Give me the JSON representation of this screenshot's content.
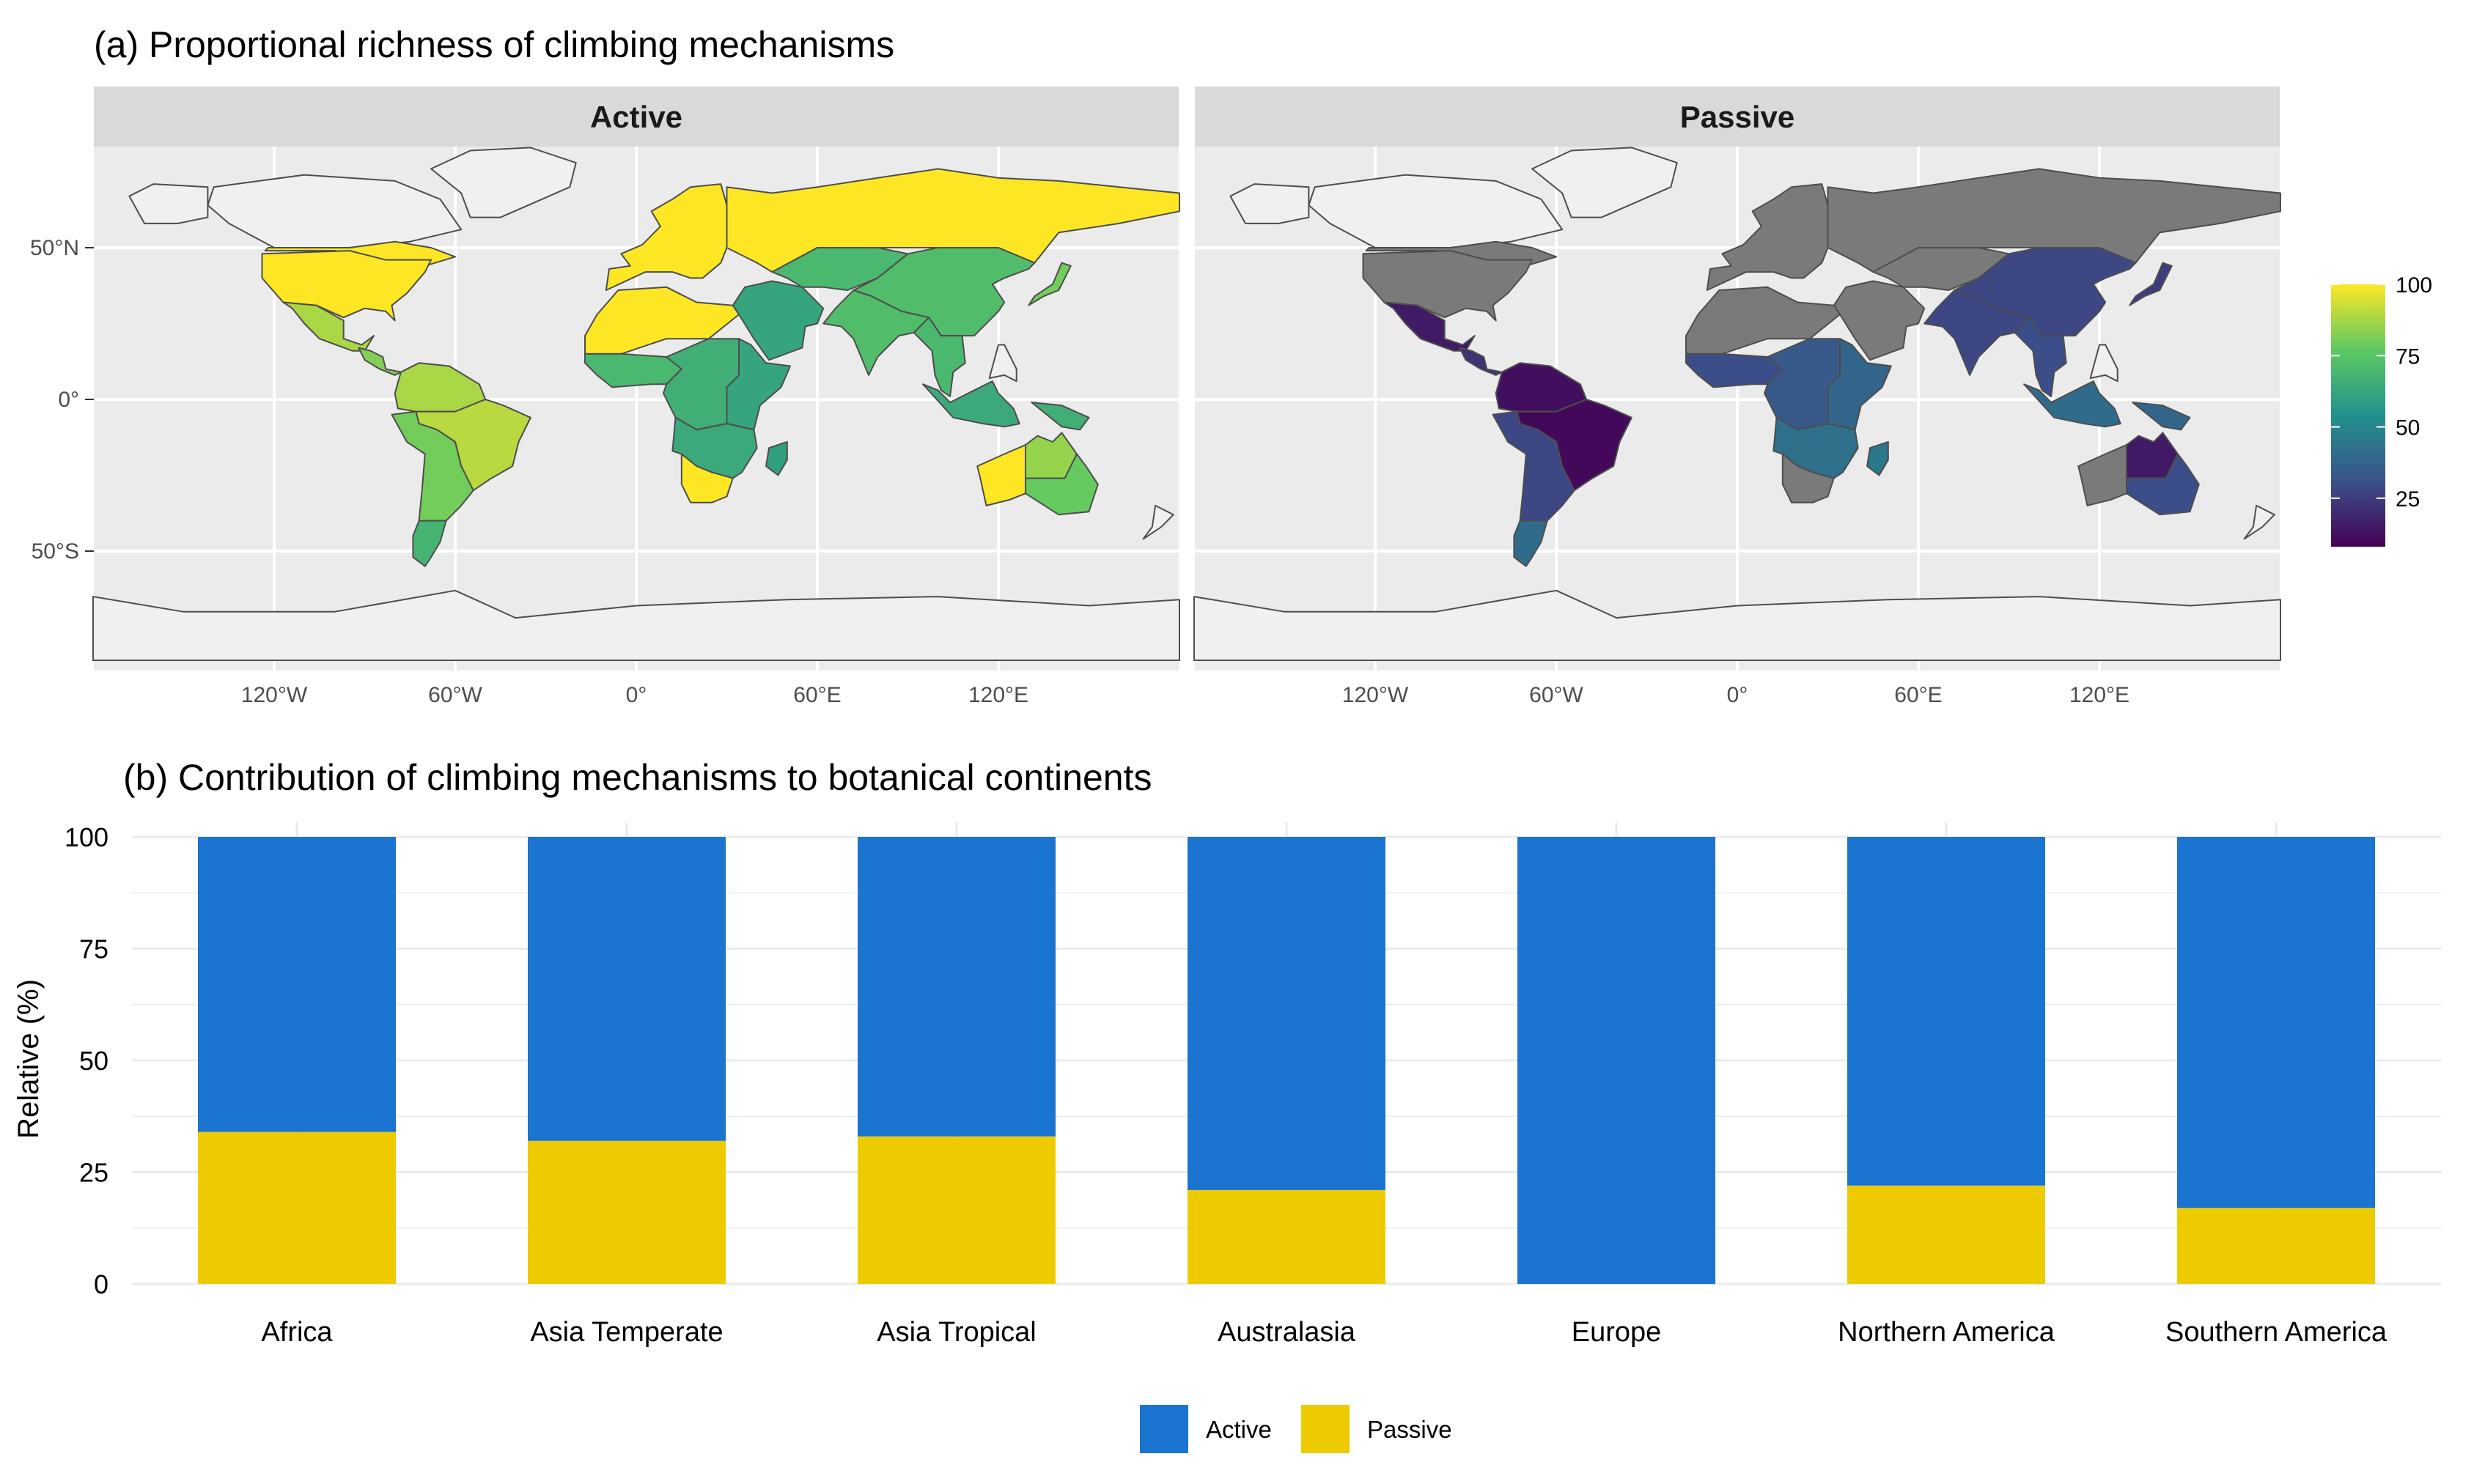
{
  "panel_a": {
    "title": "(a) Proportional richness of climbing mechanisms",
    "facets": [
      "Active",
      "Passive"
    ],
    "lat_ticks": [
      "50°N",
      "0°",
      "50°S"
    ],
    "lon_ticks": [
      "120°W",
      "60°W",
      "0°",
      "60°E",
      "120°E"
    ],
    "colorbar": {
      "ticks": [
        "100",
        "75",
        "50",
        "25"
      ],
      "range": [
        8,
        100
      ],
      "colors": [
        "#440154",
        "#3b528b",
        "#21918c",
        "#5ec962",
        "#fde725"
      ]
    },
    "colors": {
      "panel_bg": "#ebebeb",
      "strip_bg": "#d9d9d9",
      "unsampled": "#f0f0f0",
      "no_data_passive": "#7a7a7a",
      "border": "#4d4d4d"
    },
    "map_regions": [
      {
        "name": "Canada south",
        "active": 100,
        "passive": null
      },
      {
        "name": "USA",
        "active": 100,
        "passive": null
      },
      {
        "name": "Mexico",
        "active": 88,
        "passive": 15
      },
      {
        "name": "Central America",
        "active": 82,
        "passive": 22
      },
      {
        "name": "Northern South America",
        "active": 88,
        "passive": 12
      },
      {
        "name": "Brazil",
        "active": 90,
        "passive": 10
      },
      {
        "name": "Southern South America",
        "active": 80,
        "passive": 28
      },
      {
        "name": "Patagonia",
        "active": 68,
        "passive": 40
      },
      {
        "name": "Europe",
        "active": 100,
        "passive": null
      },
      {
        "name": "Russia",
        "active": 100,
        "passive": null
      },
      {
        "name": "North Africa",
        "active": 100,
        "passive": null
      },
      {
        "name": "West Africa",
        "active": 70,
        "passive": 30
      },
      {
        "name": "Central Africa",
        "active": 66,
        "passive": 34
      },
      {
        "name": "East Africa",
        "active": 62,
        "passive": 38
      },
      {
        "name": "Southern Africa",
        "active": 64,
        "passive": 42
      },
      {
        "name": "South Africa",
        "active": 100,
        "passive": null
      },
      {
        "name": "Madagascar",
        "active": 60,
        "passive": 45
      },
      {
        "name": "Middle East",
        "active": 62,
        "passive": null
      },
      {
        "name": "Central Asia",
        "active": 70,
        "passive": null
      },
      {
        "name": "India",
        "active": 72,
        "passive": 28
      },
      {
        "name": "China",
        "active": 72,
        "passive": 28
      },
      {
        "name": "Japan",
        "active": 80,
        "passive": 25
      },
      {
        "name": "Southeast Asia",
        "active": 70,
        "passive": 30
      },
      {
        "name": "Indonesia",
        "active": 64,
        "passive": 40
      },
      {
        "name": "New Guinea",
        "active": 66,
        "passive": 38
      },
      {
        "name": "Australia west",
        "active": 100,
        "passive": null
      },
      {
        "name": "Australia north",
        "active": 85,
        "passive": 15
      },
      {
        "name": "Australia east",
        "active": 78,
        "passive": 30
      }
    ]
  },
  "panel_b": {
    "title": "(b) Contribution of climbing mechanisms to botanical continents",
    "y_ticks": [
      "0",
      "25",
      "50",
      "75",
      "100"
    ]
  },
  "chart_data": {
    "type": "bar",
    "stacked": true,
    "title": "(b) Contribution of climbing mechanisms to botanical continents",
    "xlabel": "",
    "ylabel": "Relative (%)",
    "ylim": [
      0,
      100
    ],
    "categories": [
      "Africa",
      "Asia Temperate",
      "Asia Tropical",
      "Australasia",
      "Europe",
      "Northern America",
      "Southern America"
    ],
    "series": [
      {
        "name": "Passive",
        "color": "#eecb00",
        "values": [
          34,
          32,
          33,
          21,
          0,
          22,
          17
        ]
      },
      {
        "name": "Active",
        "color": "#1a74d0",
        "values": [
          66,
          68,
          67,
          79,
          100,
          78,
          83
        ]
      }
    ],
    "legend": {
      "position": "bottom",
      "entries": [
        "Active",
        "Passive"
      ]
    },
    "grid": true
  }
}
